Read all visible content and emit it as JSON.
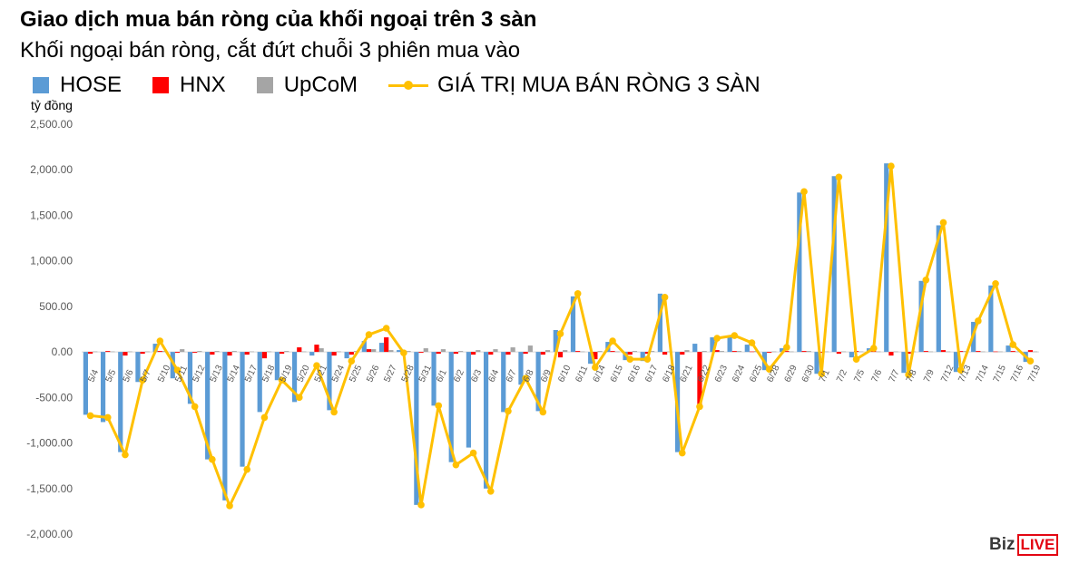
{
  "chart_data": {
    "type": "bar",
    "title": "Giao dịch mua bán ròng của khối ngoại trên 3 sàn",
    "subtitle": "Khối ngoại bán ròng, cắt đứt chuỗi 3 phiên mua vào",
    "ylabel": "tỷ đồng",
    "ylim": [
      -2000,
      2500
    ],
    "yticks": [
      "2,500.00",
      "2,000.00",
      "1,500.00",
      "1,000.00",
      "500.00",
      "0.00",
      "-500.00",
      "-1,000.00",
      "-1,500.00",
      "-2,000.00"
    ],
    "ytick_values": [
      2500,
      2000,
      1500,
      1000,
      500,
      0,
      -500,
      -1000,
      -1500,
      -2000
    ],
    "legend_position": "top",
    "grid": false,
    "categories": [
      "5/4",
      "5/5",
      "5/6",
      "5/7",
      "5/10",
      "5/11",
      "5/12",
      "5/13",
      "5/14",
      "5/17",
      "5/18",
      "5/19",
      "5/20",
      "5/21",
      "5/24",
      "5/25",
      "5/26",
      "5/27",
      "5/28",
      "5/31",
      "6/1",
      "6/2",
      "6/3",
      "6/4",
      "6/7",
      "6/8",
      "6/9",
      "6/10",
      "6/11",
      "6/14",
      "6/15",
      "6/16",
      "6/17",
      "6/18",
      "6/21",
      "6/22",
      "6/23",
      "6/24",
      "6/25",
      "6/28",
      "6/29",
      "6/30",
      "7/1",
      "7/2",
      "7/5",
      "7/6",
      "7/7",
      "7/8",
      "7/9",
      "7/12",
      "7/13",
      "7/14",
      "7/15",
      "7/16",
      "7/19"
    ],
    "series": [
      {
        "name": "HOSE",
        "type": "bar",
        "color": "#5B9BD5",
        "values": [
          -690,
          -770,
          -1100,
          -330,
          90,
          -290,
          -570,
          -1180,
          -1630,
          -1260,
          -660,
          -310,
          -550,
          -40,
          -640,
          -70,
          120,
          100,
          20,
          -1680,
          -590,
          -1210,
          -1050,
          -1500,
          -660,
          -360,
          -650,
          240,
          610,
          -130,
          110,
          -90,
          -100,
          640,
          -1100,
          90,
          160,
          170,
          80,
          -200,
          40,
          1750,
          -240,
          1930,
          -60,
          40,
          2070,
          -230,
          780,
          1390,
          -220,
          330,
          730,
          70,
          -110
        ]
      },
      {
        "name": "HNX",
        "type": "bar",
        "color": "#FF0000",
        "values": [
          -20,
          10,
          -40,
          -20,
          10,
          -10,
          -10,
          -30,
          -40,
          -30,
          -70,
          -20,
          50,
          80,
          -40,
          -30,
          30,
          160,
          5,
          -10,
          -20,
          -20,
          -30,
          -30,
          -30,
          -20,
          -30,
          -60,
          10,
          -80,
          10,
          -30,
          -20,
          -30,
          -30,
          -600,
          20,
          10,
          5,
          -10,
          10,
          10,
          -10,
          -20,
          10,
          10,
          -40,
          -20,
          10,
          20,
          10,
          10,
          5,
          10,
          20
        ]
      },
      {
        "name": "UpCoM",
        "type": "bar",
        "color": "#A5A5A5",
        "values": [
          5,
          5,
          5,
          5,
          10,
          30,
          10,
          10,
          10,
          5,
          5,
          10,
          5,
          40,
          5,
          10,
          30,
          20,
          10,
          40,
          30,
          10,
          20,
          30,
          50,
          70,
          20,
          20,
          5,
          10,
          5,
          10,
          10,
          5,
          20,
          10,
          10,
          10,
          10,
          5,
          5,
          10,
          5,
          5,
          5,
          5,
          5,
          5,
          5,
          5,
          10,
          5,
          5,
          5,
          5
        ]
      },
      {
        "name": "GIÁ TRỊ MUA BÁN RÒNG 3 SÀN",
        "type": "line",
        "color": "#FFC000",
        "values": [
          -700,
          -720,
          -1130,
          -310,
          120,
          -200,
          -600,
          -1180,
          -1690,
          -1290,
          -720,
          -310,
          -500,
          -150,
          -660,
          -100,
          190,
          260,
          -10,
          -1680,
          -590,
          -1240,
          -1110,
          -1530,
          -650,
          -290,
          -660,
          200,
          640,
          -170,
          120,
          -80,
          -80,
          600,
          -1110,
          -600,
          150,
          180,
          100,
          -190,
          50,
          1760,
          -240,
          1920,
          -80,
          40,
          2040,
          -250,
          790,
          1420,
          -200,
          340,
          750,
          80,
          -100
        ]
      }
    ]
  },
  "branding": {
    "logo_biz": "Biz",
    "logo_live": "LIVE"
  },
  "colors": {
    "hose": "#5B9BD5",
    "hnx": "#FF0000",
    "upcom": "#A5A5A5",
    "net_line": "#FFC000",
    "axis_text": "#595959",
    "zero_line": "#D9D9D9"
  }
}
